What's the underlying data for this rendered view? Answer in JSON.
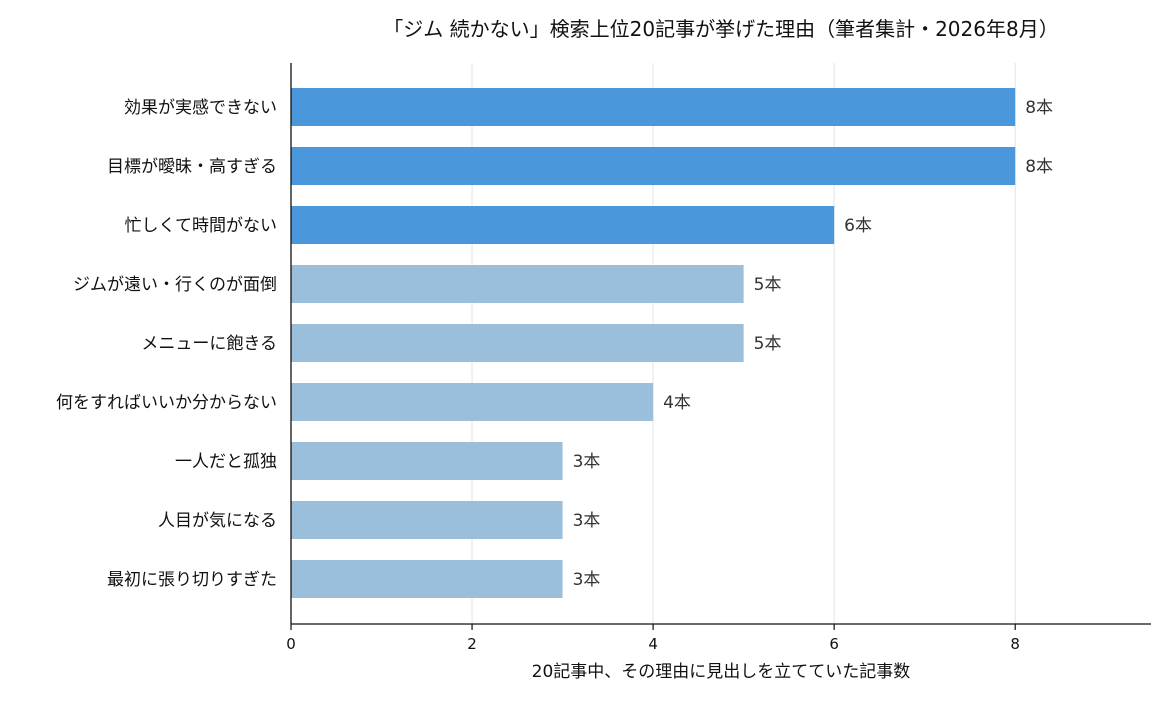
{
  "chart_data": {
    "type": "bar",
    "orientation": "horizontal",
    "title": "「ジム 続かない」検索上位20記事が挙げた理由（筆者集計・2026年8月）",
    "xlabel": "20記事中、その理由に見出しを立てていた記事数",
    "ylabel": "",
    "xlim": [
      0,
      9.5
    ],
    "xticks": [
      0,
      2,
      4,
      6,
      8
    ],
    "xtick_labels": [
      "0",
      "2",
      "4",
      "6",
      "8"
    ],
    "grid": "vertical",
    "value_suffix": "本",
    "categories": [
      "効果が実感できない",
      "目標が曖昧・高すぎる",
      "忙しくて時間がない",
      "ジムが遠い・行くのが面倒",
      "メニューに飽きる",
      "何をすればいいか分からない",
      "一人だと孤独",
      "人目が気になる",
      "最初に張り切りすぎた"
    ],
    "values": [
      8,
      8,
      6,
      5,
      5,
      4,
      3,
      3,
      3
    ],
    "data_labels": [
      "8本",
      "8本",
      "6本",
      "5本",
      "5本",
      "4本",
      "3本",
      "3本",
      "3本"
    ],
    "highlight": [
      true,
      true,
      true,
      false,
      false,
      false,
      false,
      false,
      false
    ],
    "colors": {
      "highlight": "#4a98db",
      "normal": "#9bbfdb",
      "grid": "#e8e8e8",
      "axis": "#111111"
    }
  }
}
